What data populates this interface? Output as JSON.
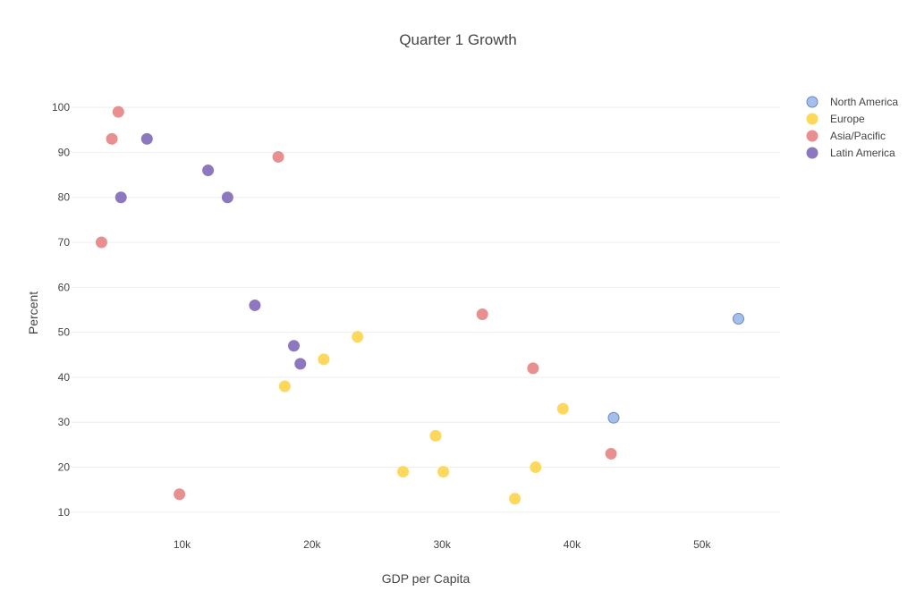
{
  "chart_data": {
    "type": "scatter",
    "title": "Quarter 1 Growth",
    "xlabel": "GDP per Capita",
    "ylabel": "Percent",
    "xlim": [
      1500,
      56000
    ],
    "ylim": [
      5,
      104
    ],
    "x_ticks": [
      10000,
      20000,
      30000,
      40000,
      50000
    ],
    "x_tick_labels": [
      "10k",
      "20k",
      "30k",
      "40k",
      "50k"
    ],
    "y_ticks": [
      10,
      20,
      30,
      40,
      50,
      60,
      70,
      80,
      90,
      100
    ],
    "y_tick_labels": [
      "10",
      "20",
      "30",
      "40",
      "50",
      "60",
      "70",
      "80",
      "90",
      "100"
    ],
    "grid": "horizontal",
    "legend_position": "top-right",
    "series": [
      {
        "name": "North America",
        "color": "#a4bfea",
        "stroke": "#6b87c4",
        "points": [
          {
            "x": 43200,
            "y": 31
          },
          {
            "x": 52800,
            "y": 53
          }
        ]
      },
      {
        "name": "Europe",
        "color": "#fdd85d",
        "stroke": "#fdd85d",
        "points": [
          {
            "x": 17900,
            "y": 38
          },
          {
            "x": 20900,
            "y": 44
          },
          {
            "x": 23500,
            "y": 49
          },
          {
            "x": 27000,
            "y": 19
          },
          {
            "x": 29500,
            "y": 27
          },
          {
            "x": 30100,
            "y": 19
          },
          {
            "x": 35600,
            "y": 13
          },
          {
            "x": 37200,
            "y": 20
          },
          {
            "x": 39300,
            "y": 33
          }
        ]
      },
      {
        "name": "Asia/Pacific",
        "color": "#e88f90",
        "stroke": "#e88f90",
        "points": [
          {
            "x": 3800,
            "y": 70
          },
          {
            "x": 4600,
            "y": 93
          },
          {
            "x": 5100,
            "y": 99
          },
          {
            "x": 9800,
            "y": 14
          },
          {
            "x": 17400,
            "y": 89
          },
          {
            "x": 33100,
            "y": 54
          },
          {
            "x": 37000,
            "y": 42
          },
          {
            "x": 43000,
            "y": 23
          }
        ]
      },
      {
        "name": "Latin America",
        "color": "#8d78bf",
        "stroke": "#8d78bf",
        "points": [
          {
            "x": 5300,
            "y": 80
          },
          {
            "x": 7300,
            "y": 93
          },
          {
            "x": 12000,
            "y": 86
          },
          {
            "x": 13500,
            "y": 80
          },
          {
            "x": 15600,
            "y": 56
          },
          {
            "x": 18600,
            "y": 47
          },
          {
            "x": 19100,
            "y": 43
          }
        ]
      }
    ]
  }
}
